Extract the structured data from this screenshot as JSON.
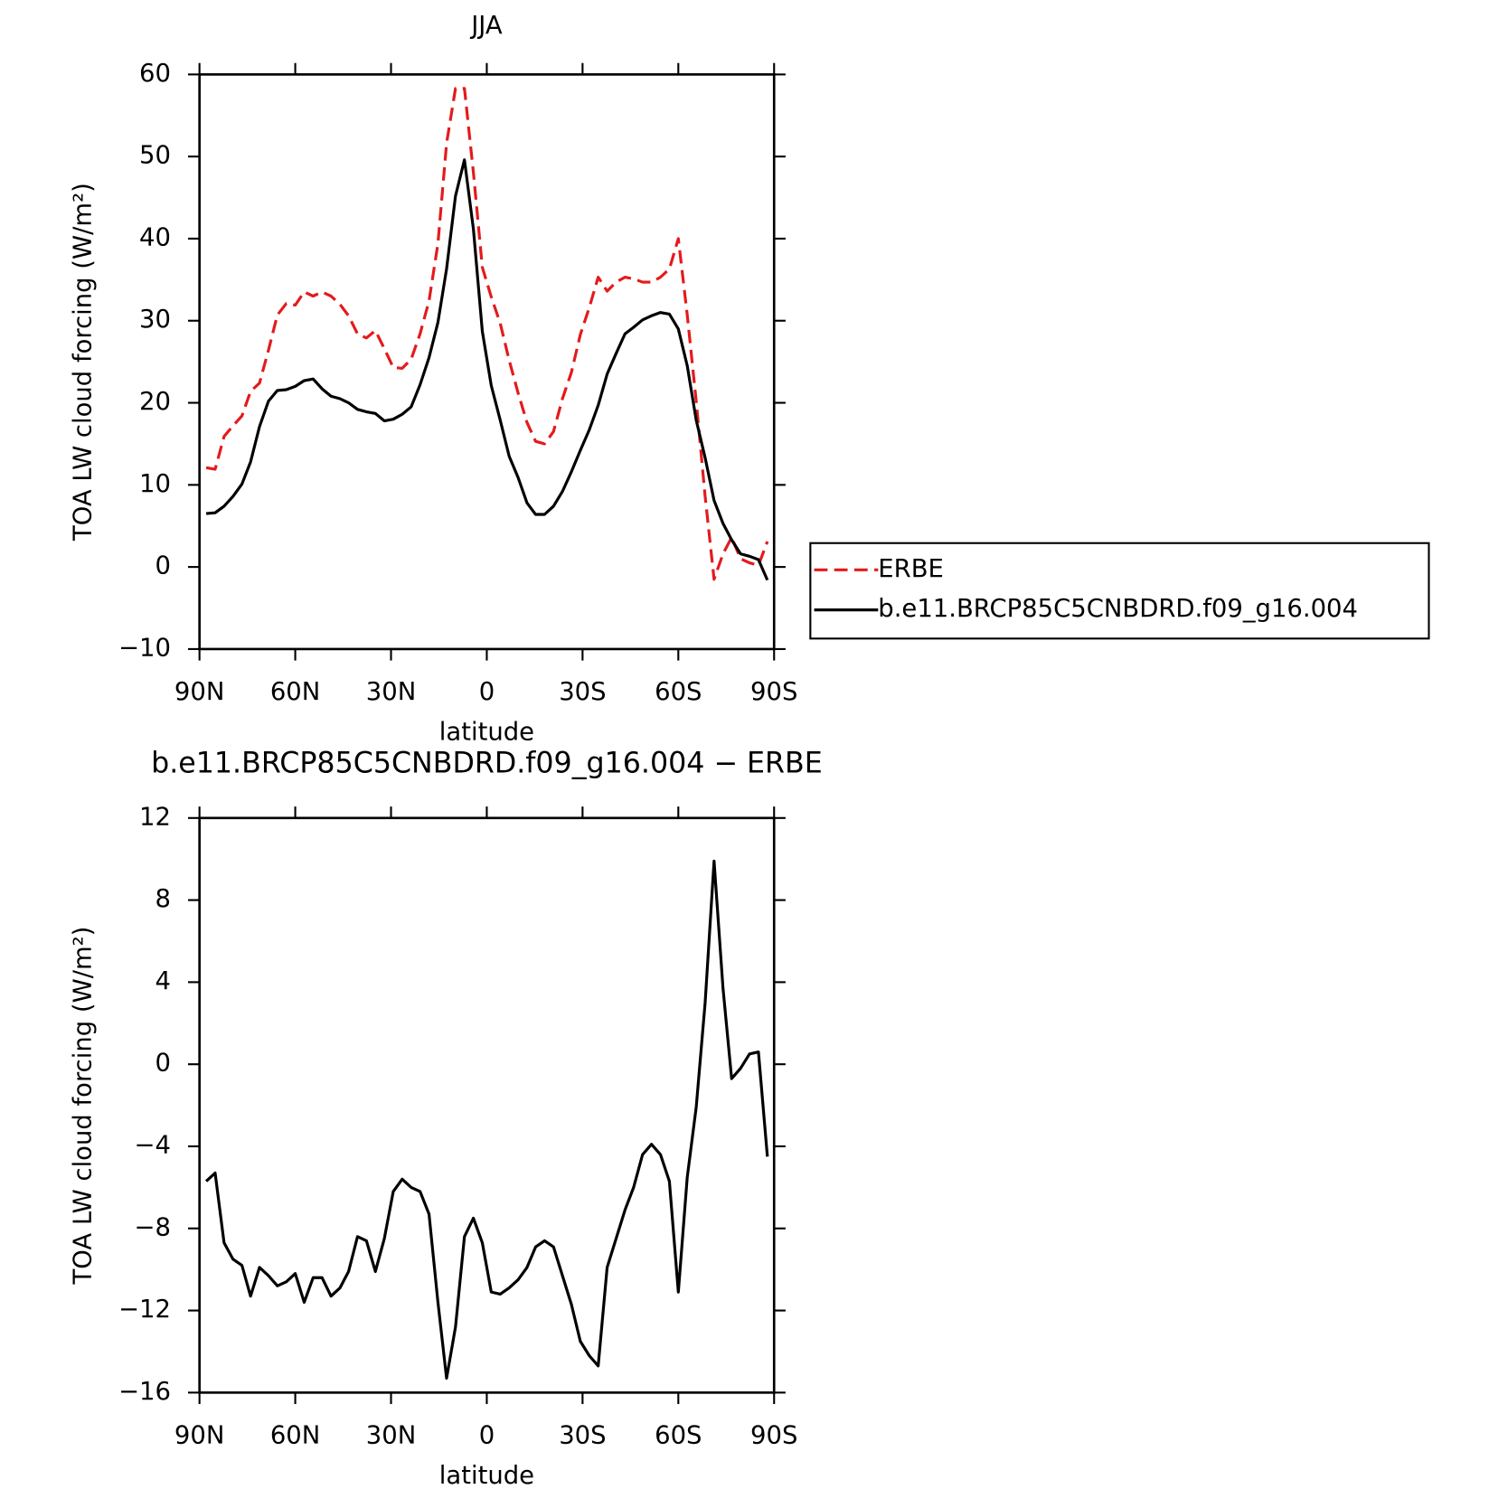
{
  "chart_data": [
    {
      "type": "line",
      "title": "JJA",
      "xlabel": "latitude",
      "ylabel": "TOA LW cloud forcing (W/m²)",
      "x": [
        87.9,
        85.1,
        82.3,
        79.5,
        76.7,
        74.0,
        71.2,
        68.4,
        65.6,
        62.8,
        60.0,
        57.2,
        54.4,
        51.6,
        48.8,
        46.0,
        43.3,
        40.5,
        37.7,
        34.9,
        32.1,
        29.3,
        26.5,
        23.7,
        20.9,
        18.1,
        15.3,
        12.6,
        9.8,
        7.0,
        4.2,
        1.4,
        -1.4,
        -4.2,
        -7.0,
        -9.8,
        -12.6,
        -15.3,
        -18.1,
        -20.9,
        -23.7,
        -26.5,
        -29.3,
        -32.1,
        -34.9,
        -37.7,
        -40.5,
        -43.3,
        -46.0,
        -48.8,
        -51.6,
        -54.4,
        -57.2,
        -60.0,
        -62.8,
        -65.6,
        -68.4,
        -71.2,
        -74.0,
        -76.7,
        -79.5,
        -82.3,
        -85.1,
        -87.9
      ],
      "xlim": [
        90,
        -90
      ],
      "xticks": [
        {
          "value": 90,
          "label": "90N"
        },
        {
          "value": 60,
          "label": "60N"
        },
        {
          "value": 30,
          "label": "30N"
        },
        0,
        {
          "value": -30,
          "label": "30S"
        },
        {
          "value": -60,
          "label": "60S"
        },
        {
          "value": -90,
          "label": "90S"
        }
      ],
      "ylim": [
        -10,
        60
      ],
      "yticks": [
        {
          "value": -10,
          "label": "−10"
        },
        0,
        10,
        20,
        30,
        40,
        50,
        60
      ],
      "legend": "right",
      "series": [
        {
          "name": "ERBE",
          "color": "#e41a1c",
          "dashed": true,
          "values": [
            12.1,
            11.9,
            15.9,
            17.2,
            18.4,
            21.4,
            22.4,
            26.4,
            30.7,
            32.1,
            31.9,
            33.5,
            33.0,
            33.5,
            33.0,
            32.0,
            30.6,
            28.4,
            27.9,
            28.8,
            26.6,
            24.3,
            24.2,
            25.3,
            28.4,
            32.4,
            39.4,
            51.6,
            58.3,
            58.3,
            48.1,
            36.5,
            32.9,
            29.7,
            25.2,
            21.2,
            17.6,
            15.3,
            15.0,
            16.5,
            20.5,
            23.7,
            28.3,
            31.6,
            35.3,
            33.6,
            34.7,
            35.3,
            35.1,
            34.7,
            34.7,
            35.3,
            36.3,
            40.0,
            30.7,
            20.2,
            8.6,
            -1.5,
            1.6,
            3.6,
            1.0,
            0.5,
            0.2,
            3.1
          ]
        },
        {
          "name": "b.e11.BRCP85C5CNBDRD.f09_g16.004",
          "color": "#000000",
          "dashed": false,
          "values": [
            6.5,
            6.6,
            7.4,
            8.6,
            10.1,
            12.8,
            17.1,
            20.2,
            21.5,
            21.6,
            22.0,
            22.7,
            22.9,
            21.7,
            20.8,
            20.5,
            20.0,
            19.2,
            18.9,
            18.7,
            17.8,
            18.0,
            18.6,
            19.5,
            22.2,
            25.5,
            29.8,
            36.3,
            45.2,
            49.6,
            41.2,
            28.7,
            22.1,
            17.9,
            13.5,
            10.9,
            7.8,
            6.4,
            6.4,
            7.4,
            9.2,
            11.6,
            14.2,
            16.7,
            19.7,
            23.5,
            26.0,
            28.4,
            29.2,
            30.1,
            30.6,
            31.0,
            30.8,
            29.0,
            24.5,
            17.9,
            13.3,
            8.1,
            5.3,
            3.3,
            1.6,
            1.3,
            0.9,
            -1.6
          ]
        }
      ]
    },
    {
      "type": "line",
      "title": "b.e11.BRCP85C5CNBDRD.f09_g16.004 − ERBE",
      "xlabel": "latitude",
      "ylabel": "TOA LW cloud forcing (W/m²)",
      "x": [
        87.9,
        85.1,
        82.3,
        79.5,
        76.7,
        74.0,
        71.2,
        68.4,
        65.6,
        62.8,
        60.0,
        57.2,
        54.4,
        51.6,
        48.8,
        46.0,
        43.3,
        40.5,
        37.7,
        34.9,
        32.1,
        29.3,
        26.5,
        23.7,
        20.9,
        18.1,
        15.3,
        12.6,
        9.8,
        7.0,
        4.2,
        1.4,
        -1.4,
        -4.2,
        -7.0,
        -9.8,
        -12.6,
        -15.3,
        -18.1,
        -20.9,
        -23.7,
        -26.5,
        -29.3,
        -32.1,
        -34.9,
        -37.7,
        -40.5,
        -43.3,
        -46.0,
        -48.8,
        -51.6,
        -54.4,
        -57.2,
        -60.0,
        -62.8,
        -65.6,
        -68.4,
        -71.2,
        -74.0,
        -76.7,
        -79.5,
        -82.3,
        -85.1,
        -87.9
      ],
      "xlim": [
        90,
        -90
      ],
      "xticks": [
        {
          "value": 90,
          "label": "90N"
        },
        {
          "value": 60,
          "label": "60N"
        },
        {
          "value": 30,
          "label": "30N"
        },
        0,
        {
          "value": -30,
          "label": "30S"
        },
        {
          "value": -60,
          "label": "60S"
        },
        {
          "value": -90,
          "label": "90S"
        }
      ],
      "ylim": [
        -16,
        12
      ],
      "yticks": [
        {
          "value": -16,
          "label": "−16"
        },
        {
          "value": -12,
          "label": "−12"
        },
        {
          "value": -8,
          "label": "−8"
        },
        {
          "value": -4,
          "label": "−4"
        },
        0,
        4,
        8,
        12
      ],
      "color": "#000000",
      "values": [
        -5.7,
        -5.3,
        -8.7,
        -9.5,
        -9.8,
        -11.3,
        -9.9,
        -10.3,
        -10.8,
        -10.6,
        -10.2,
        -11.6,
        -10.4,
        -10.4,
        -11.3,
        -10.9,
        -10.1,
        -8.4,
        -8.6,
        -10.1,
        -8.5,
        -6.2,
        -5.6,
        -6.0,
        -6.2,
        -7.3,
        -11.6,
        -15.3,
        -12.8,
        -8.4,
        -7.5,
        -8.7,
        -11.1,
        -11.2,
        -10.9,
        -10.5,
        -9.9,
        -8.9,
        -8.6,
        -8.9,
        -10.3,
        -11.7,
        -13.5,
        -14.2,
        -14.7,
        -9.9,
        -8.5,
        -7.1,
        -6.0,
        -4.4,
        -3.9,
        -4.4,
        -5.7,
        -11.1,
        -5.5,
        -2.1,
        3.0,
        9.9,
        3.7,
        -0.7,
        -0.2,
        0.5,
        0.6,
        -4.5
      ]
    }
  ]
}
